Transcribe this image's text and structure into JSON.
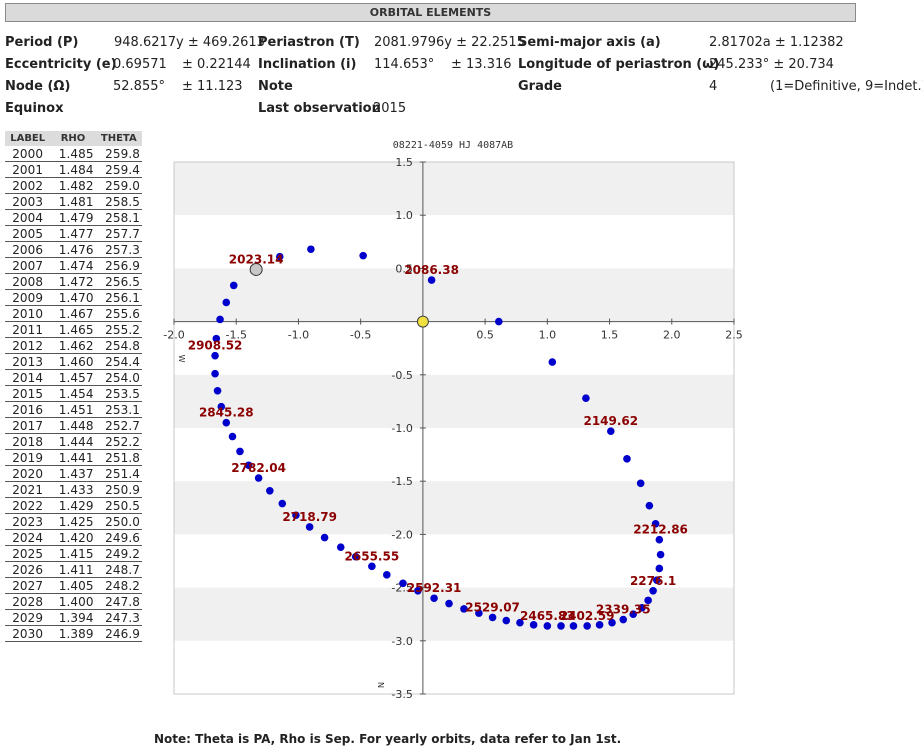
{
  "header": {
    "title": "ORBITAL ELEMENTS"
  },
  "elements": {
    "period_label": "Period (P)",
    "period_value": "948.6217y ± 469.2613",
    "periastron_label": "Periastron (T)",
    "periastron_value": "2081.9796y ± 22.2515",
    "semimajor_label": "Semi-major axis (a)",
    "semimajor_value": "2.81702a ± 1.12382",
    "eccentricity_label": "Eccentricity (e)",
    "eccentricity_value": "0.69571",
    "eccentricity_error": "± 0.22144",
    "inclination_label": "Inclination (i)",
    "inclination_value": "114.653°",
    "inclination_error": "± 13.316",
    "longitude_label": "Longitude of periastron (ω)",
    "longitude_value": "245.233° ± 20.734",
    "node_label": "Node (Ω)",
    "node_value": "52.855°",
    "node_error": "± 11.123",
    "note_label": "Note",
    "grade_label": "Grade",
    "grade_value": "4",
    "grade_legend": "(1=Definitive, 9=Indet.)",
    "equinox_label": "Equinox",
    "lastobs_label": "Last observation",
    "lastobs_value": "2015"
  },
  "ephemeris": {
    "columns": [
      "LABEL",
      "RHO",
      "THETA"
    ],
    "rows": [
      [
        "2000",
        "1.485",
        "259.8"
      ],
      [
        "2001",
        "1.484",
        "259.4"
      ],
      [
        "2002",
        "1.482",
        "259.0"
      ],
      [
        "2003",
        "1.481",
        "258.5"
      ],
      [
        "2004",
        "1.479",
        "258.1"
      ],
      [
        "2005",
        "1.477",
        "257.7"
      ],
      [
        "2006",
        "1.476",
        "257.3"
      ],
      [
        "2007",
        "1.474",
        "256.9"
      ],
      [
        "2008",
        "1.472",
        "256.5"
      ],
      [
        "2009",
        "1.470",
        "256.1"
      ],
      [
        "2010",
        "1.467",
        "255.6"
      ],
      [
        "2011",
        "1.465",
        "255.2"
      ],
      [
        "2012",
        "1.462",
        "254.8"
      ],
      [
        "2013",
        "1.460",
        "254.4"
      ],
      [
        "2014",
        "1.457",
        "254.0"
      ],
      [
        "2015",
        "1.454",
        "253.5"
      ],
      [
        "2016",
        "1.451",
        "253.1"
      ],
      [
        "2017",
        "1.448",
        "252.7"
      ],
      [
        "2018",
        "1.444",
        "252.2"
      ],
      [
        "2019",
        "1.441",
        "251.8"
      ],
      [
        "2020",
        "1.437",
        "251.4"
      ],
      [
        "2021",
        "1.433",
        "250.9"
      ],
      [
        "2022",
        "1.429",
        "250.5"
      ],
      [
        "2023",
        "1.425",
        "250.0"
      ],
      [
        "2024",
        "1.420",
        "249.6"
      ],
      [
        "2025",
        "1.415",
        "249.2"
      ],
      [
        "2026",
        "1.411",
        "248.7"
      ],
      [
        "2027",
        "1.405",
        "248.2"
      ],
      [
        "2028",
        "1.400",
        "247.8"
      ],
      [
        "2029",
        "1.394",
        "247.3"
      ],
      [
        "2030",
        "1.389",
        "246.9"
      ]
    ]
  },
  "chart_data": {
    "type": "scatter",
    "title": "08221-4059 HJ 4087AB",
    "xlim": [
      -2.0,
      2.5
    ],
    "ylim": [
      -3.5,
      1.5
    ],
    "xticks": [
      -2.0,
      -1.5,
      -1.0,
      -0.5,
      0.5,
      1.0,
      1.5,
      2.0,
      2.5
    ],
    "xtick_labels": [
      "-2.0",
      "-1.5",
      "-1.0",
      "-0.5",
      "0.5",
      "1.0",
      "1.5",
      "2.0",
      "2.5"
    ],
    "yticks": [
      1.5,
      1.0,
      0.5,
      -0.5,
      -1.0,
      -1.5,
      -2.0,
      -2.5,
      -3.0,
      -3.5
    ],
    "ytick_labels": [
      "1.5",
      "1.0",
      "0.5",
      "-0.5",
      "-1.0",
      "-1.5",
      "-2.0",
      "-2.5",
      "-3.0",
      "-3.5"
    ],
    "xlabel": "W",
    "ylabel": "N",
    "grid": "alternating horizontal bands",
    "colors": {
      "points": "#0000cc",
      "labels": "#8b0000",
      "primary": "#f0e040",
      "current": "#c8c8c8"
    },
    "primary_star": {
      "x": 0.0,
      "y": 0.0
    },
    "current_position": {
      "x": -1.34,
      "y": 0.49
    },
    "orbit_points": [
      {
        "x": -1.34,
        "y": 0.49
      },
      {
        "x": -1.15,
        "y": 0.61
      },
      {
        "x": -0.9,
        "y": 0.68
      },
      {
        "x": -0.48,
        "y": 0.62
      },
      {
        "x": 0.07,
        "y": 0.39
      },
      {
        "x": 0.61,
        "y": 0.0
      },
      {
        "x": 1.04,
        "y": -0.38
      },
      {
        "x": 1.31,
        "y": -0.72
      },
      {
        "x": 1.51,
        "y": -1.03
      },
      {
        "x": 1.64,
        "y": -1.29
      },
      {
        "x": 1.75,
        "y": -1.52
      },
      {
        "x": 1.82,
        "y": -1.73
      },
      {
        "x": 1.87,
        "y": -1.9
      },
      {
        "x": 1.9,
        "y": -2.05
      },
      {
        "x": 1.91,
        "y": -2.19
      },
      {
        "x": 1.9,
        "y": -2.32
      },
      {
        "x": 1.88,
        "y": -2.43
      },
      {
        "x": 1.85,
        "y": -2.53
      },
      {
        "x": 1.81,
        "y": -2.62
      },
      {
        "x": 1.76,
        "y": -2.69
      },
      {
        "x": 1.69,
        "y": -2.75
      },
      {
        "x": 1.61,
        "y": -2.8
      },
      {
        "x": 1.52,
        "y": -2.83
      },
      {
        "x": 1.42,
        "y": -2.85
      },
      {
        "x": 1.32,
        "y": -2.86
      },
      {
        "x": 1.21,
        "y": -2.86
      },
      {
        "x": 1.11,
        "y": -2.86
      },
      {
        "x": 1.0,
        "y": -2.86
      },
      {
        "x": 0.89,
        "y": -2.85
      },
      {
        "x": 0.78,
        "y": -2.83
      },
      {
        "x": 0.67,
        "y": -2.81
      },
      {
        "x": 0.56,
        "y": -2.78
      },
      {
        "x": 0.45,
        "y": -2.74
      },
      {
        "x": 0.33,
        "y": -2.7
      },
      {
        "x": 0.21,
        "y": -2.65
      },
      {
        "x": 0.09,
        "y": -2.6
      },
      {
        "x": -0.04,
        "y": -2.53
      },
      {
        "x": -0.16,
        "y": -2.46
      },
      {
        "x": -0.29,
        "y": -2.38
      },
      {
        "x": -0.41,
        "y": -2.3
      },
      {
        "x": -0.54,
        "y": -2.21
      },
      {
        "x": -0.66,
        "y": -2.12
      },
      {
        "x": -0.79,
        "y": -2.03
      },
      {
        "x": -0.91,
        "y": -1.93
      },
      {
        "x": -1.02,
        "y": -1.82
      },
      {
        "x": -1.13,
        "y": -1.71
      },
      {
        "x": -1.23,
        "y": -1.59
      },
      {
        "x": -1.32,
        "y": -1.47
      },
      {
        "x": -1.4,
        "y": -1.35
      },
      {
        "x": -1.47,
        "y": -1.22
      },
      {
        "x": -1.53,
        "y": -1.08
      },
      {
        "x": -1.58,
        "y": -0.95
      },
      {
        "x": -1.62,
        "y": -0.8
      },
      {
        "x": -1.65,
        "y": -0.65
      },
      {
        "x": -1.67,
        "y": -0.49
      },
      {
        "x": -1.67,
        "y": -0.32
      },
      {
        "x": -1.66,
        "y": -0.16
      },
      {
        "x": -1.63,
        "y": 0.02
      },
      {
        "x": -1.58,
        "y": 0.18
      },
      {
        "x": -1.52,
        "y": 0.34
      }
    ],
    "epoch_labels": [
      {
        "text": "2023.14",
        "x": -1.34,
        "y": 0.49
      },
      {
        "text": "2086.38",
        "x": 0.07,
        "y": 0.39
      },
      {
        "text": "2149.62",
        "x": 1.51,
        "y": -1.03
      },
      {
        "text": "2212.86",
        "x": 1.91,
        "y": -2.05
      },
      {
        "text": "2276.1",
        "x": 1.85,
        "y": -2.53
      },
      {
        "text": "2339.35",
        "x": 1.61,
        "y": -2.8
      },
      {
        "text": "2402.59",
        "x": 1.32,
        "y": -2.86
      },
      {
        "text": "2465.83",
        "x": 1.0,
        "y": -2.86
      },
      {
        "text": "2529.07",
        "x": 0.56,
        "y": -2.78
      },
      {
        "text": "2592.31",
        "x": 0.09,
        "y": -2.6
      },
      {
        "text": "2655.55",
        "x": -0.41,
        "y": -2.3
      },
      {
        "text": "2718.79",
        "x": -0.91,
        "y": -1.93
      },
      {
        "text": "2782.04",
        "x": -1.32,
        "y": -1.47
      },
      {
        "text": "2845.28",
        "x": -1.58,
        "y": -0.95
      },
      {
        "text": "2908.52",
        "x": -1.67,
        "y": -0.32
      }
    ]
  },
  "footer": {
    "note": "Note: Theta is PA, Rho is Sep. For yearly orbits, data refer to Jan 1st."
  }
}
